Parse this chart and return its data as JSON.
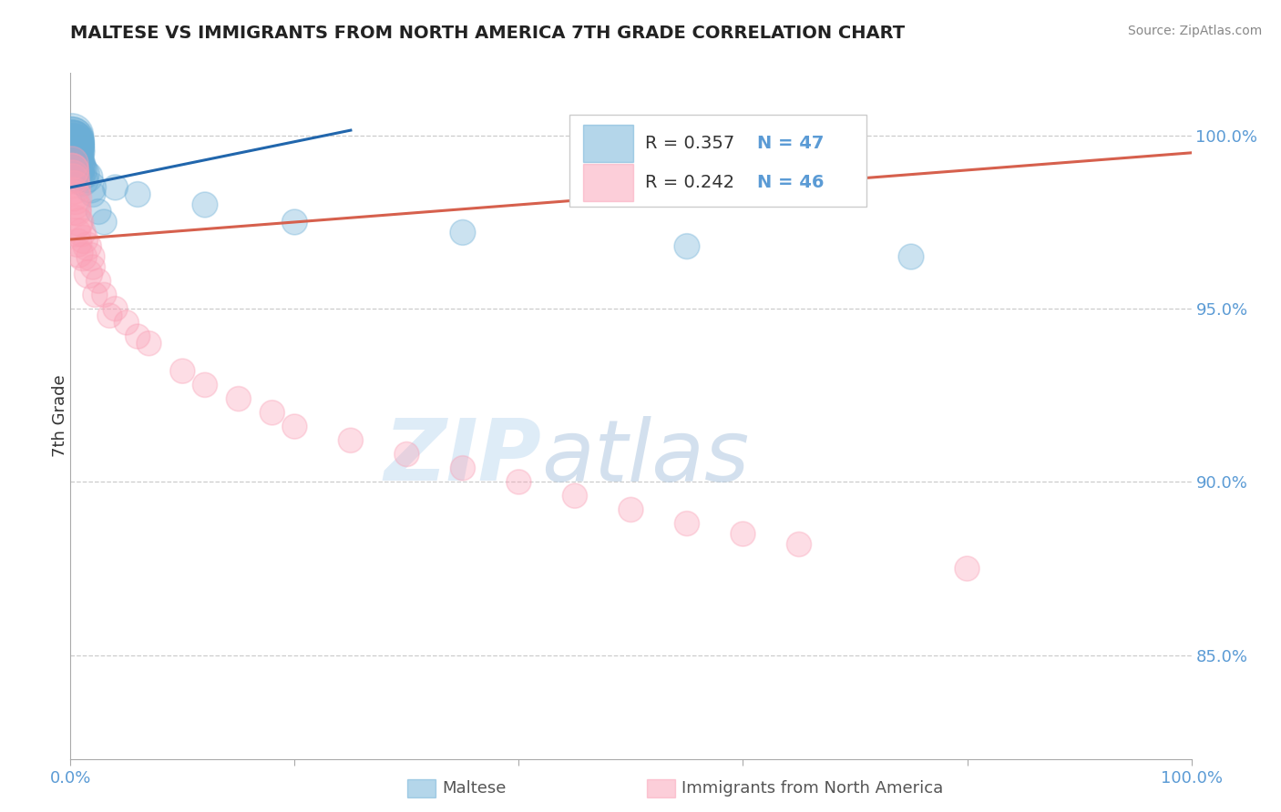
{
  "title": "MALTESE VS IMMIGRANTS FROM NORTH AMERICA 7TH GRADE CORRELATION CHART",
  "source": "Source: ZipAtlas.com",
  "ylabel_label": "7th Grade",
  "ylabel_ticks": [
    85.0,
    90.0,
    95.0,
    100.0
  ],
  "xlim": [
    0.0,
    100.0
  ],
  "ylim": [
    82.0,
    101.8
  ],
  "blue_color": "#6baed6",
  "pink_color": "#fa9fb5",
  "blue_line_color": "#2166ac",
  "pink_line_color": "#d6604d",
  "R_blue": 0.357,
  "N_blue": 47,
  "R_pink": 0.242,
  "N_pink": 46,
  "legend_label_blue": "Maltese",
  "legend_label_pink": "Immigrants from North America",
  "grid_color": "#cccccc",
  "background_color": "#ffffff",
  "tick_color": "#5b9bd5",
  "watermark_zip": "ZIP",
  "watermark_atlas": "atlas",
  "blue_scatter_x": [
    0.1,
    0.12,
    0.15,
    0.18,
    0.2,
    0.22,
    0.25,
    0.28,
    0.3,
    0.35,
    0.4,
    0.45,
    0.5,
    0.55,
    0.6,
    0.65,
    0.7,
    0.8,
    0.9,
    1.0,
    1.2,
    1.5,
    1.8,
    2.0,
    2.5,
    3.0,
    0.08,
    0.1,
    0.13,
    0.16,
    0.19,
    0.23,
    0.27,
    0.32,
    0.38,
    0.48,
    0.58,
    0.68,
    0.78,
    1.1,
    4.0,
    6.0,
    12.0,
    20.0,
    35.0,
    55.0,
    75.0
  ],
  "blue_scatter_y": [
    99.8,
    99.9,
    99.7,
    99.8,
    99.9,
    99.6,
    99.7,
    99.8,
    99.5,
    99.6,
    99.7,
    99.5,
    99.6,
    99.4,
    99.5,
    99.3,
    99.4,
    99.2,
    99.1,
    99.0,
    98.9,
    98.8,
    98.5,
    98.3,
    97.8,
    97.5,
    99.9,
    100.0,
    99.8,
    99.7,
    99.6,
    99.5,
    99.4,
    99.3,
    99.2,
    99.1,
    99.0,
    98.9,
    98.8,
    98.7,
    98.5,
    98.3,
    98.0,
    97.5,
    97.2,
    96.8,
    96.5
  ],
  "pink_scatter_x": [
    0.1,
    0.15,
    0.2,
    0.3,
    0.4,
    0.5,
    0.6,
    0.8,
    1.0,
    1.2,
    1.5,
    1.8,
    2.0,
    2.5,
    3.0,
    4.0,
    5.0,
    6.0,
    0.12,
    0.18,
    0.25,
    0.35,
    0.45,
    0.55,
    0.65,
    0.75,
    1.1,
    1.6,
    2.2,
    3.5,
    7.0,
    10.0,
    12.0,
    15.0,
    18.0,
    20.0,
    25.0,
    30.0,
    35.0,
    40.0,
    45.0,
    50.0,
    55.0,
    60.0,
    65.0,
    80.0
  ],
  "pink_scatter_y": [
    99.2,
    99.0,
    98.8,
    98.5,
    98.2,
    98.0,
    97.8,
    97.5,
    97.2,
    97.0,
    96.8,
    96.5,
    96.2,
    95.8,
    95.4,
    95.0,
    94.6,
    94.2,
    99.0,
    98.7,
    98.3,
    97.9,
    97.5,
    97.2,
    96.9,
    96.6,
    96.5,
    96.0,
    95.4,
    94.8,
    94.0,
    93.2,
    92.8,
    92.4,
    92.0,
    91.6,
    91.2,
    90.8,
    90.4,
    90.0,
    89.6,
    89.2,
    88.8,
    88.5,
    88.2,
    87.5
  ],
  "blue_line_x0": 0.0,
  "blue_line_y0": 98.5,
  "blue_line_x1": 25.0,
  "blue_line_y1": 100.15,
  "pink_line_x0": 0.0,
  "pink_line_y0": 97.0,
  "pink_line_x1": 100.0,
  "pink_line_y1": 99.5
}
